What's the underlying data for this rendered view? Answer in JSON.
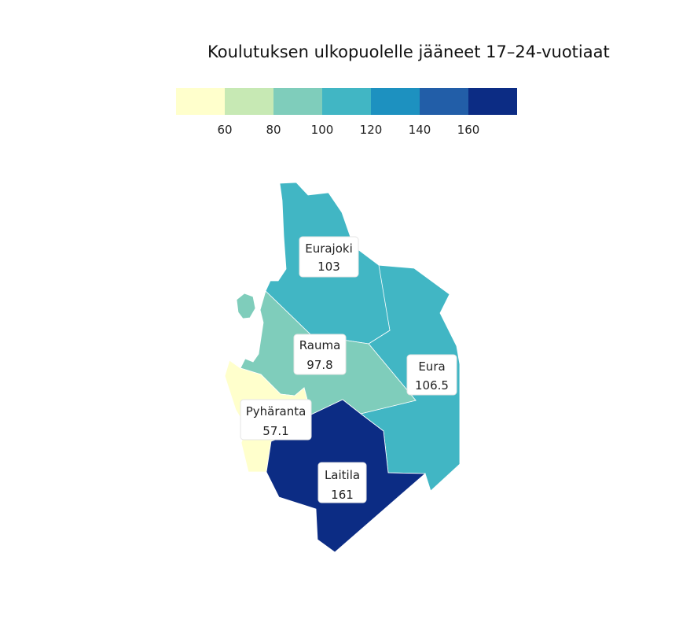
{
  "title": "Koulutuksen ulkopuolelle jääneet 17–24-vuotiaat",
  "legend": {
    "ticks": [
      "60",
      "80",
      "100",
      "120",
      "140",
      "160"
    ],
    "colors": [
      "#ffffcc",
      "#c7e9b4",
      "#7fcdbb",
      "#41b6c4",
      "#1d91c0",
      "#225ea8",
      "#0c2c84"
    ]
  },
  "regions": [
    {
      "name": "Eurajoki",
      "value": "103",
      "color": "#41b6c4"
    },
    {
      "name": "Rauma",
      "value": "97.8",
      "color": "#7fcdbb"
    },
    {
      "name": "Eura",
      "value": "106.5",
      "color": "#41b6c4"
    },
    {
      "name": "Pyhäranta",
      "value": "57.1",
      "color": "#ffffcc"
    },
    {
      "name": "Laitila",
      "value": "161",
      "color": "#0c2c84"
    }
  ]
}
